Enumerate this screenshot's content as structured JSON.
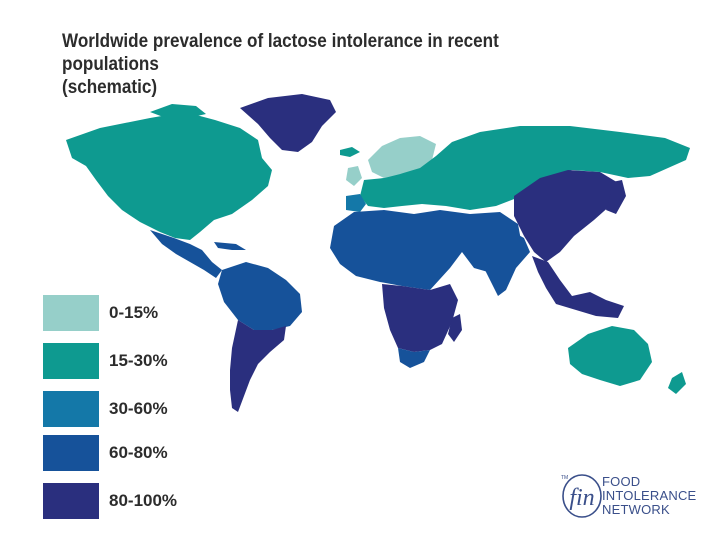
{
  "title": {
    "line1": "Worldwide prevalence of lactose intolerance in recent populations",
    "line2": "(schematic)"
  },
  "colors": {
    "c0_15": "#96cfc9",
    "c15_30": "#0e9a90",
    "c30_60": "#1478a8",
    "c60_80": "#16529a",
    "c80_100": "#2a2f7e"
  },
  "legend": [
    {
      "label": "0-15%",
      "color": "#96cfc9"
    },
    {
      "label": "15-30%",
      "color": "#0e9a90"
    },
    {
      "label": "30-60%",
      "color": "#1478a8"
    },
    {
      "label": "60-80%",
      "color": "#16529a"
    },
    {
      "label": "80-100%",
      "color": "#2a2f7e"
    }
  ],
  "regions": [
    {
      "name": "North America",
      "category": "15-30%"
    },
    {
      "name": "Greenland",
      "category": "80-100%"
    },
    {
      "name": "Central America",
      "category": "60-80%"
    },
    {
      "name": "Northern South America",
      "category": "60-80%"
    },
    {
      "name": "Southern South America",
      "category": "80-100%"
    },
    {
      "name": "Scandinavia",
      "category": "0-15%"
    },
    {
      "name": "Europe and Russia",
      "category": "15-30%"
    },
    {
      "name": "Iberia",
      "category": "30-60%"
    },
    {
      "name": "North Africa and Middle East",
      "category": "60-80%"
    },
    {
      "name": "India",
      "category": "60-80%"
    },
    {
      "name": "Sub-Saharan Africa",
      "category": "80-100%"
    },
    {
      "name": "Southern Africa",
      "category": "60-80%"
    },
    {
      "name": "East Asia",
      "category": "80-100%"
    },
    {
      "name": "Southeast Asia",
      "category": "80-100%"
    },
    {
      "name": "Australia",
      "category": "15-30%"
    },
    {
      "name": "New Zealand",
      "category": "15-30%"
    }
  ],
  "logo": {
    "mark": "fin",
    "tm": "TM",
    "line1": "FOOD",
    "line2": "INTOLERANCE",
    "line3": "NETWORK"
  }
}
